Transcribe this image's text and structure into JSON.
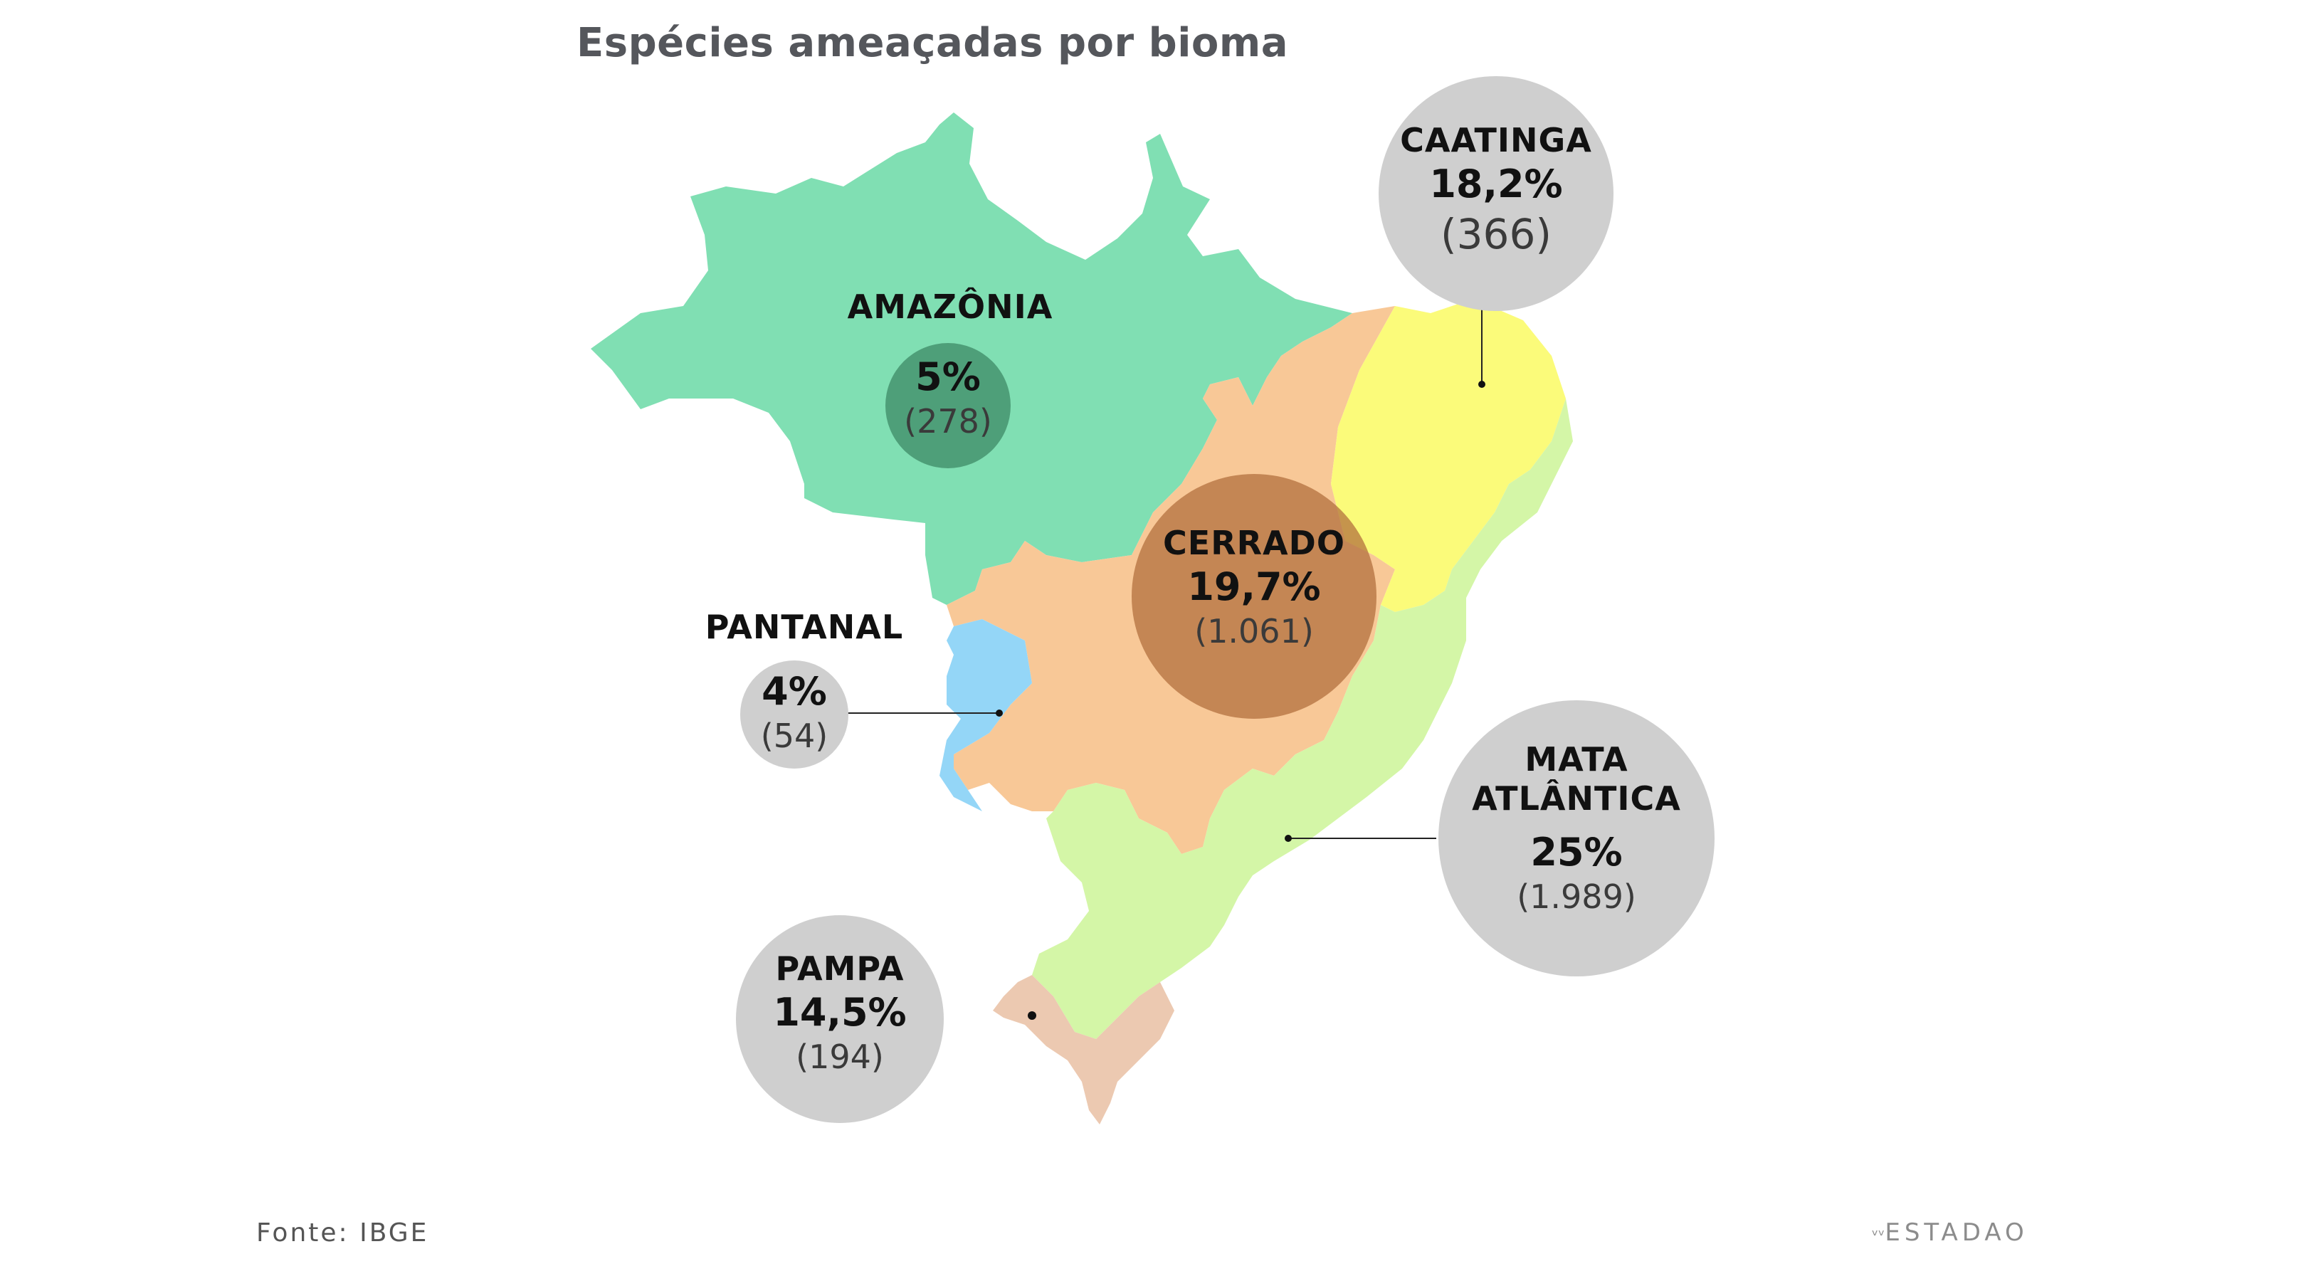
{
  "title": "Espécies ameaçadas por bioma",
  "source": "Fonte: IBGE",
  "brand": "ESTADAO",
  "colors": {
    "amazonia": "#80dfb3",
    "cerrado": "#f8c897",
    "caatinga": "#fbfb7a",
    "mata_atlantica": "#d4f6a7",
    "pantanal": "#94d6f7",
    "pampa": "#ecc9b1",
    "bubble": "#cfcfcf",
    "amazonia_bubble": "#3e8a66",
    "cerrado_bubble": "#b06c3a"
  },
  "biomes": [
    {
      "key": "amazonia",
      "name": "AMAZÔNIA",
      "percent": "5%",
      "count": "(278)"
    },
    {
      "key": "caatinga",
      "name": "CAATINGA",
      "percent": "18,2%",
      "count": "(366)"
    },
    {
      "key": "cerrado",
      "name": "CERRADO",
      "percent": "19,7%",
      "count": "(1.061)"
    },
    {
      "key": "pantanal",
      "name": "PANTANAL",
      "percent": "4%",
      "count": "(54)"
    },
    {
      "key": "mata_atlantica",
      "name_line1": "MATA",
      "name_line2": "ATLÂNTICA",
      "percent": "25%",
      "count": "(1.989)"
    },
    {
      "key": "pampa",
      "name": "PAMPA",
      "percent": "14,5%",
      "count": "(194)"
    }
  ]
}
